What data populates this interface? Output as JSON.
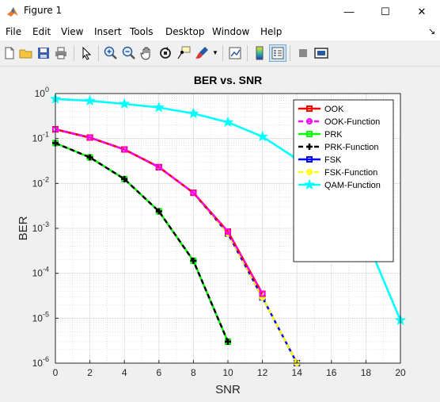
{
  "window": {
    "title": "Figure 1",
    "minimize_glyph": "—",
    "maximize_glyph": "☐",
    "close_glyph": "✕",
    "icon": "matlab-icon"
  },
  "menu": {
    "items": [
      "File",
      "Edit",
      "View",
      "Insert",
      "Tools",
      "Desktop",
      "Window",
      "Help"
    ],
    "dock_arrow": "↘"
  },
  "toolbar": {
    "icons": [
      "new-figure-icon",
      "open-file-icon",
      "save-icon",
      "print-icon",
      "pointer-icon",
      "zoom-in-icon",
      "zoom-out-icon",
      "pan-hand-icon",
      "rotate-3d-icon",
      "data-cursor-icon",
      "brush-icon",
      "link-plot-icon",
      "colorbar-icon",
      "legend-icon",
      "hide-plot-tools-icon",
      "show-plot-tools-icon"
    ]
  },
  "chart_data": {
    "type": "line",
    "title": "BER vs. SNR",
    "xlabel": "SNR",
    "ylabel": "BER",
    "xlim": [
      0,
      20
    ],
    "ylim": [
      1e-06,
      1
    ],
    "yscale": "log",
    "grid": true,
    "minor_grid": true,
    "legend_location": "top-right",
    "x_ticks": [
      "0",
      "2",
      "4",
      "6",
      "8",
      "10",
      "12",
      "14",
      "16",
      "18",
      "20"
    ],
    "y_ticks": [
      {
        "base": "10",
        "exp": "-6"
      },
      {
        "base": "10",
        "exp": "-5"
      },
      {
        "base": "10",
        "exp": "-4"
      },
      {
        "base": "10",
        "exp": "-3"
      },
      {
        "base": "10",
        "exp": "-2"
      },
      {
        "base": "10",
        "exp": "-1"
      },
      {
        "base": "10",
        "exp": "0"
      }
    ],
    "series": [
      {
        "name": "OOK",
        "color": "#ff0000",
        "style": "solid",
        "marker": "square",
        "x": [
          0,
          2,
          4,
          6,
          8,
          10,
          12
        ],
        "y": [
          0.16,
          0.105,
          0.057,
          0.023,
          0.0062,
          0.00085,
          3.5e-05
        ]
      },
      {
        "name": "OOK-Function",
        "color": "#ff00ff",
        "style": "dashed",
        "marker": "circle",
        "x": [
          0,
          2,
          4,
          6,
          8,
          10,
          12
        ],
        "y": [
          0.16,
          0.105,
          0.057,
          0.023,
          0.0062,
          0.00085,
          3.5e-05
        ]
      },
      {
        "name": "PRK",
        "color": "#00ff00",
        "style": "solid",
        "marker": "square",
        "x": [
          0,
          2,
          4,
          6,
          8,
          10
        ],
        "y": [
          0.079,
          0.038,
          0.0125,
          0.0024,
          0.00019,
          3e-06
        ]
      },
      {
        "name": "PRK-Function",
        "color": "#000000",
        "style": "dashed",
        "marker": "plus",
        "x": [
          0,
          2,
          4,
          6,
          8,
          10
        ],
        "y": [
          0.079,
          0.038,
          0.0125,
          0.0024,
          0.00019,
          3e-06
        ]
      },
      {
        "name": "FSK",
        "color": "#0000ff",
        "style": "solid",
        "marker": "square",
        "x": [
          0,
          2,
          4,
          6,
          8,
          10,
          12,
          14
        ],
        "y": [
          0.16,
          0.105,
          0.057,
          0.023,
          0.0062,
          0.00077,
          2.9e-05,
          1e-06
        ]
      },
      {
        "name": "FSK-Function",
        "color": "#ffff00",
        "style": "dashed",
        "marker": "circle",
        "x": [
          0,
          2,
          4,
          6,
          8,
          10,
          12,
          14
        ],
        "y": [
          0.16,
          0.105,
          0.057,
          0.023,
          0.0062,
          0.00077,
          2.9e-05,
          1e-06
        ]
      },
      {
        "name": "QAM-Function",
        "color": "#00ffff",
        "style": "solid",
        "marker": "pentagram",
        "x": [
          0,
          2,
          4,
          6,
          8,
          10,
          12,
          14,
          16,
          18,
          20
        ],
        "y": [
          0.76,
          0.69,
          0.59,
          0.49,
          0.36,
          0.23,
          0.11,
          0.035,
          0.0065,
          0.0006,
          9e-06
        ]
      }
    ]
  }
}
